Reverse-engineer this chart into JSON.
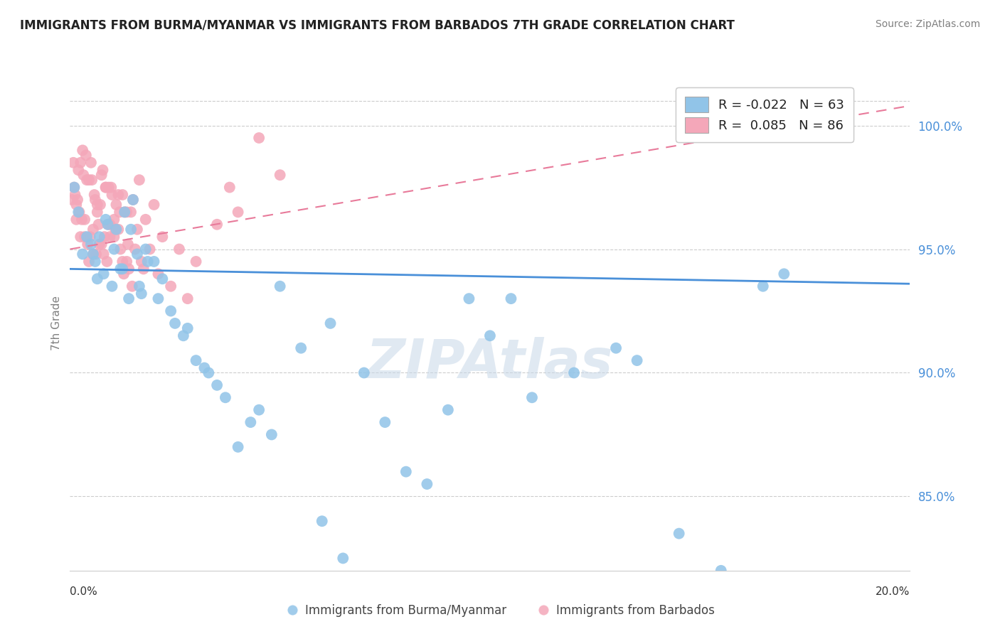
{
  "title": "IMMIGRANTS FROM BURMA/MYANMAR VS IMMIGRANTS FROM BARBADOS 7TH GRADE CORRELATION CHART",
  "source": "Source: ZipAtlas.com",
  "ylabel": "7th Grade",
  "xlim": [
    0.0,
    20.0
  ],
  "ylim": [
    82.0,
    102.0
  ],
  "yticks": [
    85.0,
    90.0,
    95.0,
    100.0
  ],
  "ytick_labels": [
    "85.0%",
    "90.0%",
    "95.0%",
    "100.0%"
  ],
  "blue_label": "Immigrants from Burma/Myanmar",
  "pink_label": "Immigrants from Barbados",
  "R_blue": -0.022,
  "N_blue": 63,
  "R_pink": 0.085,
  "N_pink": 86,
  "blue_color": "#91c4e8",
  "pink_color": "#f4a7b9",
  "blue_line_color": "#4a90d9",
  "pink_line_color": "#e87a9a",
  "watermark": "ZIPAtlas",
  "watermark_color": "#c8d8e8",
  "blue_trend": [
    94.2,
    93.6
  ],
  "pink_trend": [
    95.0,
    100.8
  ],
  "top_dashed_y": 101.0,
  "blue_scatter_x": [
    0.3,
    0.5,
    0.6,
    0.7,
    0.8,
    0.9,
    1.0,
    1.1,
    1.2,
    1.3,
    1.4,
    1.5,
    1.6,
    1.7,
    1.8,
    2.0,
    2.2,
    2.5,
    2.7,
    3.0,
    3.3,
    3.5,
    4.0,
    4.5,
    5.0,
    5.5,
    6.0,
    6.5,
    7.0,
    7.5,
    8.0,
    8.5,
    9.0,
    9.5,
    10.0,
    11.0,
    12.0,
    13.0,
    14.5,
    15.5,
    17.0,
    0.1,
    0.2,
    0.4,
    0.55,
    0.65,
    0.85,
    1.05,
    1.25,
    1.45,
    1.65,
    1.85,
    2.1,
    2.4,
    2.8,
    3.2,
    3.7,
    4.3,
    4.8,
    6.2,
    10.5,
    13.5,
    16.5
  ],
  "blue_scatter_y": [
    94.8,
    95.2,
    94.5,
    95.5,
    94.0,
    96.0,
    93.5,
    95.8,
    94.2,
    96.5,
    93.0,
    97.0,
    94.8,
    93.2,
    95.0,
    94.5,
    93.8,
    92.0,
    91.5,
    90.5,
    90.0,
    89.5,
    87.0,
    88.5,
    93.5,
    91.0,
    84.0,
    82.5,
    90.0,
    88.0,
    86.0,
    85.5,
    88.5,
    93.0,
    91.5,
    89.0,
    90.0,
    91.0,
    83.5,
    82.0,
    94.0,
    97.5,
    96.5,
    95.5,
    94.8,
    93.8,
    96.2,
    95.0,
    94.2,
    95.8,
    93.5,
    94.5,
    93.0,
    92.5,
    91.8,
    90.2,
    89.0,
    88.0,
    87.5,
    92.0,
    93.0,
    90.5,
    93.5
  ],
  "pink_scatter_x": [
    0.1,
    0.15,
    0.2,
    0.25,
    0.3,
    0.35,
    0.4,
    0.45,
    0.5,
    0.55,
    0.6,
    0.65,
    0.7,
    0.75,
    0.8,
    0.85,
    0.9,
    0.95,
    1.0,
    1.1,
    1.2,
    1.3,
    1.4,
    1.5,
    1.6,
    1.7,
    1.8,
    1.9,
    2.0,
    2.1,
    2.2,
    2.4,
    2.6,
    2.8,
    3.0,
    3.5,
    4.0,
    4.5,
    0.12,
    0.22,
    0.32,
    0.42,
    0.52,
    0.62,
    0.72,
    0.82,
    0.92,
    1.05,
    1.15,
    1.25,
    1.35,
    1.45,
    1.55,
    1.65,
    1.75,
    0.08,
    0.18,
    0.28,
    0.38,
    0.48,
    0.58,
    0.68,
    0.78,
    0.88,
    0.98,
    1.08,
    1.18,
    1.28,
    1.38,
    1.48,
    3.8,
    5.0,
    0.05,
    0.15,
    0.25,
    0.35,
    0.45,
    0.55,
    0.65,
    0.75,
    0.85,
    0.95,
    1.05,
    1.15,
    1.25,
    1.35
  ],
  "pink_scatter_y": [
    97.5,
    96.8,
    98.2,
    95.5,
    99.0,
    96.2,
    97.8,
    94.5,
    98.5,
    95.8,
    97.0,
    96.5,
    95.2,
    98.0,
    94.8,
    97.5,
    96.0,
    95.5,
    97.2,
    96.8,
    95.0,
    96.5,
    94.2,
    97.0,
    95.8,
    94.5,
    96.2,
    95.0,
    96.8,
    94.0,
    95.5,
    93.5,
    95.0,
    93.0,
    94.5,
    96.0,
    96.5,
    99.5,
    97.2,
    96.5,
    98.0,
    95.2,
    97.8,
    94.8,
    96.8,
    95.5,
    97.5,
    96.2,
    95.8,
    97.2,
    94.5,
    96.5,
    95.0,
    97.8,
    94.2,
    98.5,
    97.0,
    96.2,
    98.8,
    95.5,
    97.2,
    96.0,
    98.2,
    94.5,
    97.5,
    95.8,
    96.5,
    94.0,
    95.2,
    93.5,
    97.5,
    98.0,
    97.0,
    96.2,
    98.5,
    95.5,
    97.8,
    94.8,
    96.8,
    95.2,
    97.5,
    96.0,
    95.5,
    97.2,
    94.5,
    96.5
  ]
}
